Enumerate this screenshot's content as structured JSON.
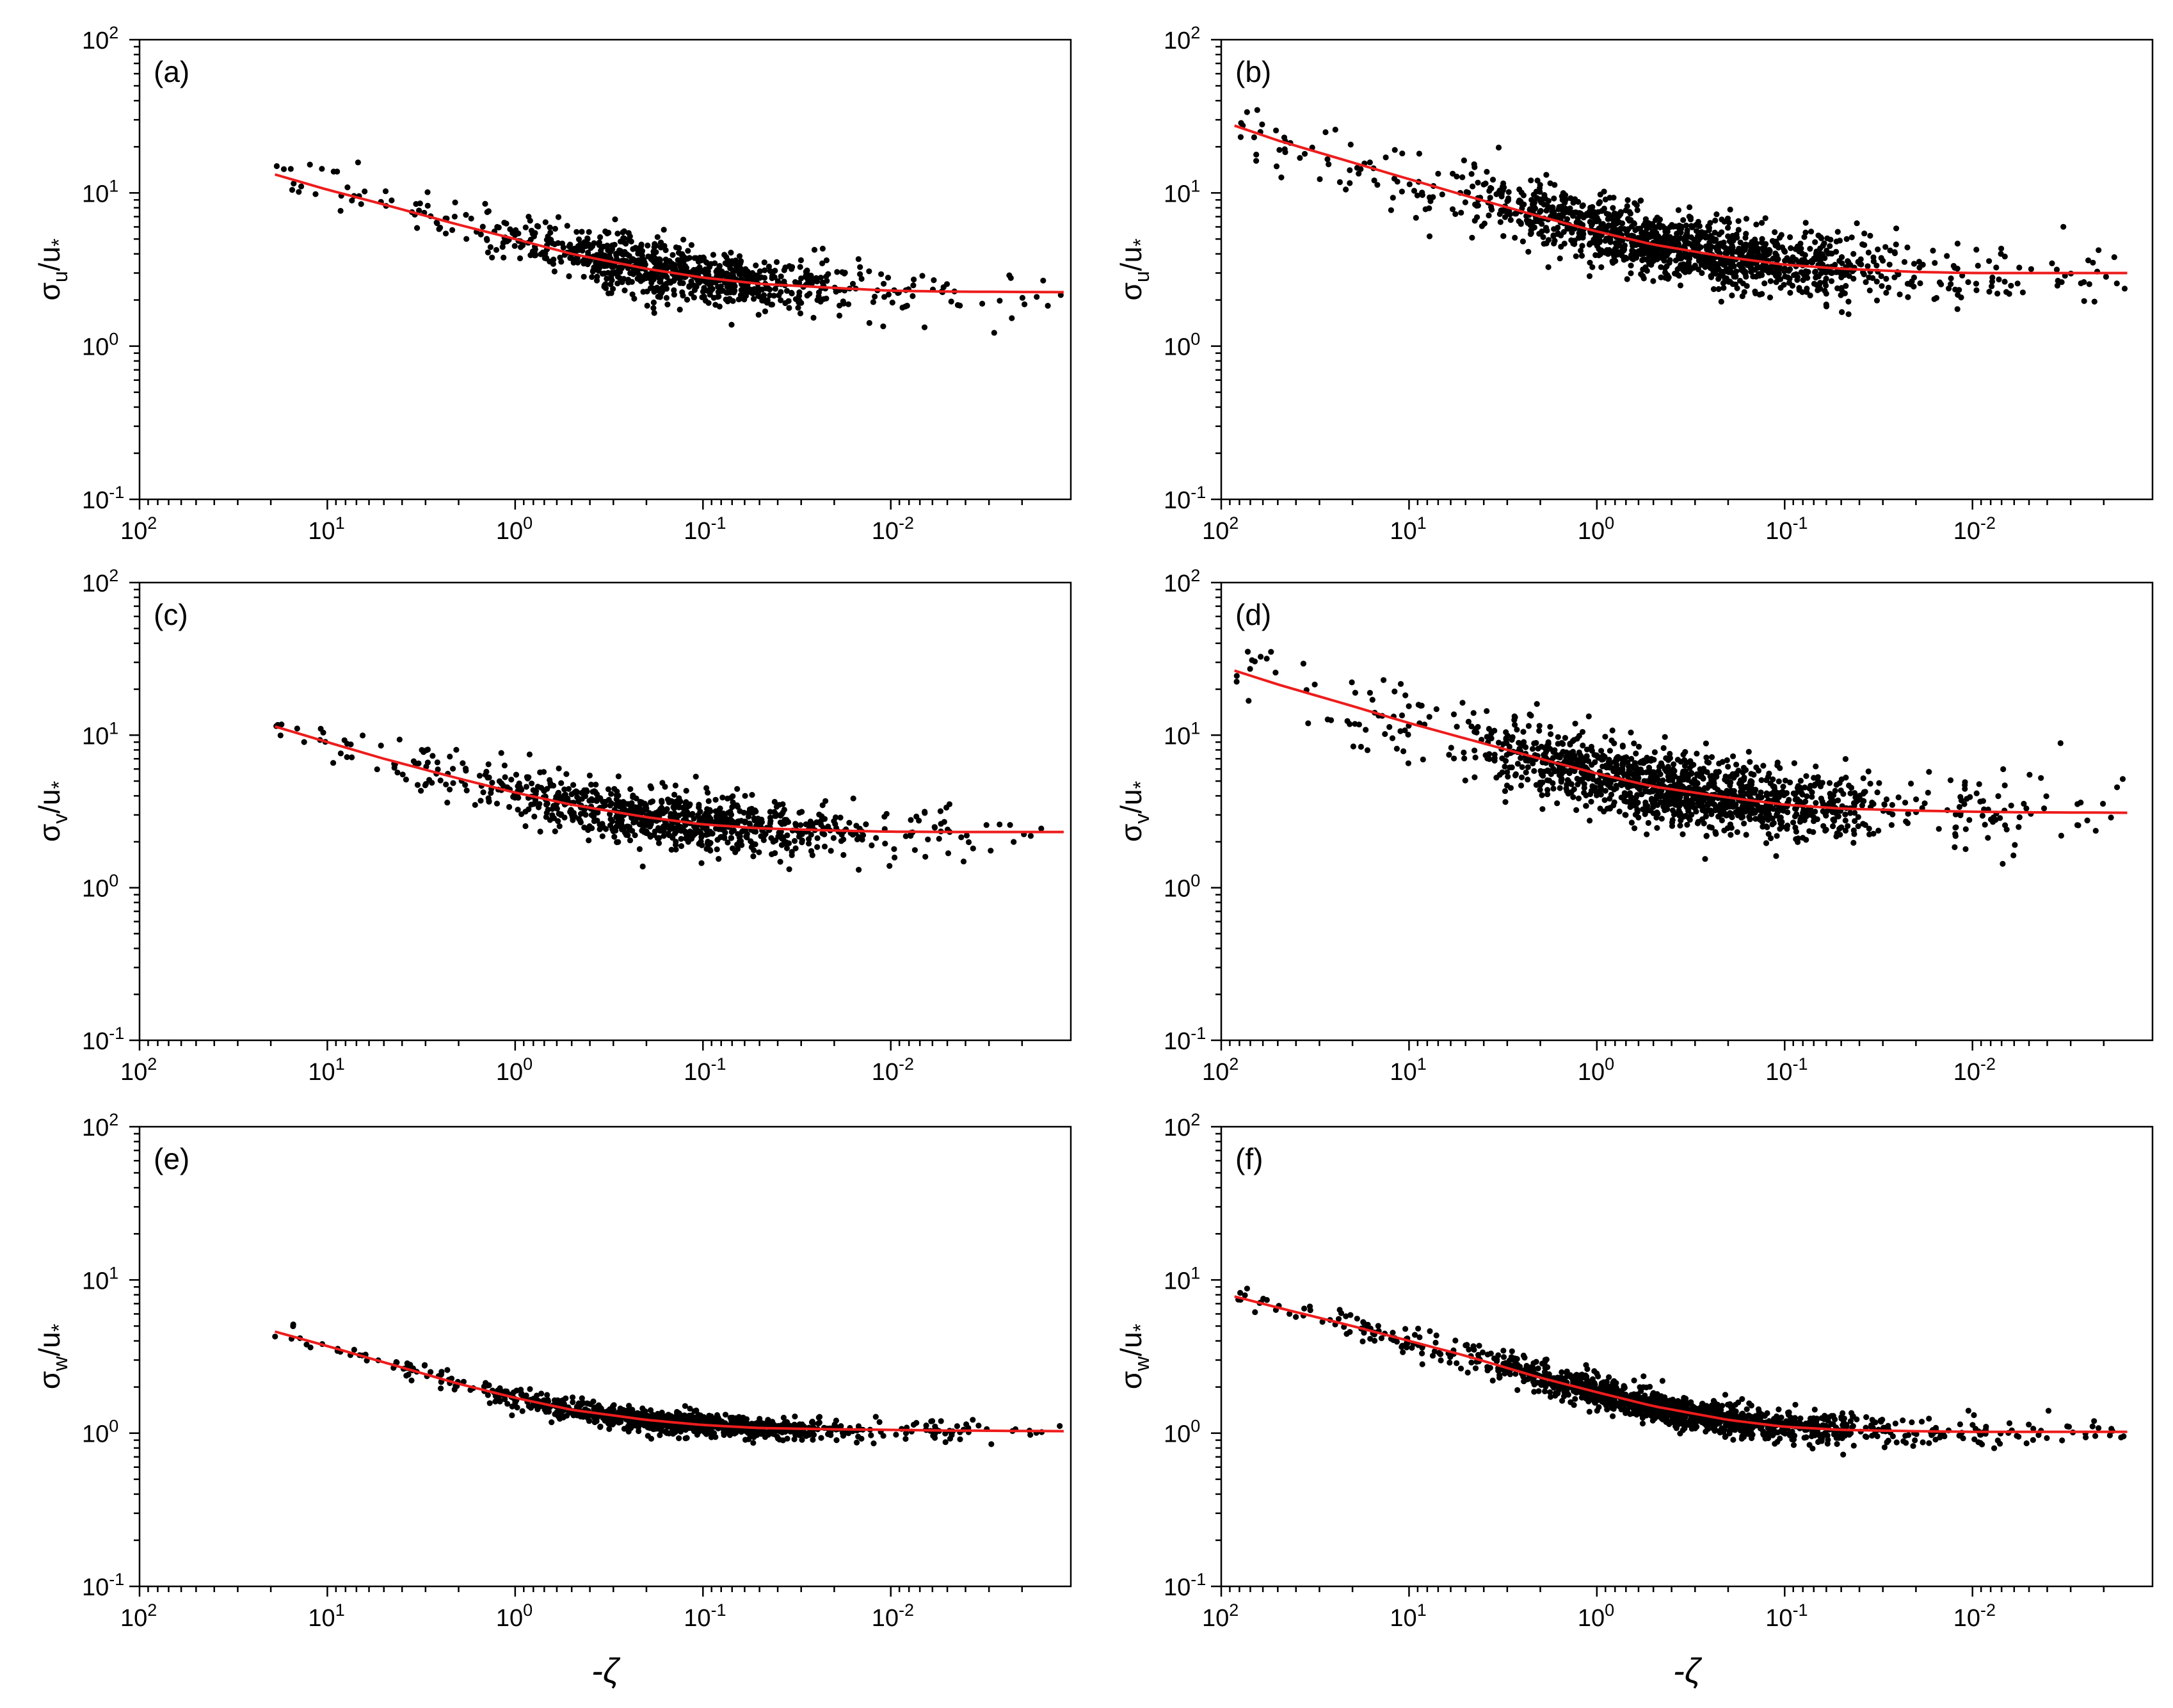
{
  "chart_data": {
    "x_axis_label": "-ζ",
    "x_axis_reversed": true,
    "x_scale": "log",
    "y_scale": "log",
    "panels": [
      {
        "id": "a",
        "label": "(a)",
        "type": "scatter",
        "ylabel": "σu/u*",
        "ylabel_main": "σ",
        "ylabel_sub": "u",
        "xlim": [
          100,
          0.0011
        ],
        "ylim": [
          0.1,
          100
        ],
        "x_ticks": [
          {
            "base": "10",
            "exp": "2"
          },
          {
            "base": "10",
            "exp": "1"
          },
          {
            "base": "10",
            "exp": "0"
          },
          {
            "base": "10",
            "exp": "-1"
          },
          {
            "base": "10",
            "exp": "-2"
          }
        ],
        "y_ticks": [
          {
            "base": "10",
            "exp": "2"
          },
          {
            "base": "10",
            "exp": "1"
          },
          {
            "base": "10",
            "exp": "0"
          },
          {
            "base": "10",
            "exp": "-1"
          }
        ],
        "x_tick_values": [
          100,
          10,
          1,
          0.1,
          0.01
        ],
        "y_tick_values": [
          100,
          10,
          1,
          0.1
        ],
        "show_xlabel": false,
        "scatter": {
          "xmin": 0.0012,
          "xmax": 19,
          "n": 900,
          "spread": 0.09,
          "seed": 11
        },
        "fit_curve": {
          "name": "fit",
          "x": [
            19,
            10,
            5,
            2,
            1,
            0.5,
            0.2,
            0.1,
            0.05,
            0.02,
            0.01,
            0.005,
            0.0012
          ],
          "y": [
            13.2,
            10.5,
            8.4,
            6.2,
            5.0,
            4.0,
            3.2,
            2.8,
            2.55,
            2.4,
            2.3,
            2.27,
            2.25
          ]
        }
      },
      {
        "id": "b",
        "label": "(b)",
        "type": "scatter",
        "ylabel": "σu/u*",
        "ylabel_main": "σ",
        "ylabel_sub": "u",
        "xlim": [
          100,
          0.0011
        ],
        "ylim": [
          0.1,
          100
        ],
        "x_ticks": [
          {
            "base": "10",
            "exp": "2"
          },
          {
            "base": "10",
            "exp": "1"
          },
          {
            "base": "10",
            "exp": "0"
          },
          {
            "base": "10",
            "exp": "-1"
          },
          {
            "base": "10",
            "exp": "-2"
          }
        ],
        "y_ticks": [
          {
            "base": "10",
            "exp": "2"
          },
          {
            "base": "10",
            "exp": "1"
          },
          {
            "base": "10",
            "exp": "0"
          },
          {
            "base": "10",
            "exp": "-1"
          }
        ],
        "x_tick_values": [
          100,
          10,
          1,
          0.1,
          0.01
        ],
        "y_tick_values": [
          100,
          10,
          1,
          0.1
        ],
        "show_xlabel": false,
        "scatter": {
          "xmin": 0.0015,
          "xmax": 85,
          "n": 1400,
          "spread": 0.11,
          "seed": 23
        },
        "fit_curve": {
          "name": "fit",
          "x": [
            85,
            50,
            20,
            10,
            5,
            2,
            1,
            0.5,
            0.2,
            0.1,
            0.05,
            0.02,
            0.01,
            0.005,
            0.0015
          ],
          "y": [
            27.5,
            22,
            15.8,
            12.3,
            9.6,
            7.0,
            5.6,
            4.6,
            3.8,
            3.4,
            3.2,
            3.05,
            3.0,
            3.0,
            3.0
          ]
        }
      },
      {
        "id": "c",
        "label": "(c)",
        "type": "scatter",
        "ylabel": "σv/u*",
        "ylabel_main": "σ",
        "ylabel_sub": "v",
        "xlim": [
          100,
          0.0011
        ],
        "ylim": [
          0.1,
          100
        ],
        "x_ticks": [
          {
            "base": "10",
            "exp": "2"
          },
          {
            "base": "10",
            "exp": "1"
          },
          {
            "base": "10",
            "exp": "0"
          },
          {
            "base": "10",
            "exp": "-1"
          },
          {
            "base": "10",
            "exp": "-2"
          }
        ],
        "y_ticks": [
          {
            "base": "10",
            "exp": "2"
          },
          {
            "base": "10",
            "exp": "1"
          },
          {
            "base": "10",
            "exp": "0"
          },
          {
            "base": "10",
            "exp": "-1"
          }
        ],
        "x_tick_values": [
          100,
          10,
          1,
          0.1,
          0.01
        ],
        "y_tick_values": [
          100,
          10,
          1,
          0.1
        ],
        "show_xlabel": false,
        "scatter": {
          "xmin": 0.0012,
          "xmax": 19,
          "n": 900,
          "spread": 0.09,
          "seed": 37
        },
        "fit_curve": {
          "name": "fit",
          "x": [
            19,
            10,
            5,
            2,
            1,
            0.5,
            0.2,
            0.1,
            0.05,
            0.02,
            0.01,
            0.005,
            0.0012
          ],
          "y": [
            11.4,
            9.0,
            7.0,
            5.2,
            4.2,
            3.5,
            2.9,
            2.6,
            2.45,
            2.37,
            2.33,
            2.32,
            2.32
          ]
        }
      },
      {
        "id": "d",
        "label": "(d)",
        "type": "scatter",
        "ylabel": "σv/u*",
        "ylabel_main": "σ",
        "ylabel_sub": "v",
        "xlim": [
          100,
          0.0011
        ],
        "ylim": [
          0.1,
          100
        ],
        "x_ticks": [
          {
            "base": "10",
            "exp": "2"
          },
          {
            "base": "10",
            "exp": "1"
          },
          {
            "base": "10",
            "exp": "0"
          },
          {
            "base": "10",
            "exp": "-1"
          },
          {
            "base": "10",
            "exp": "-2"
          }
        ],
        "y_ticks": [
          {
            "base": "10",
            "exp": "2"
          },
          {
            "base": "10",
            "exp": "1"
          },
          {
            "base": "10",
            "exp": "0"
          },
          {
            "base": "10",
            "exp": "-1"
          }
        ],
        "x_tick_values": [
          100,
          10,
          1,
          0.1,
          0.01
        ],
        "y_tick_values": [
          100,
          10,
          1,
          0.1
        ],
        "show_xlabel": false,
        "scatter": {
          "xmin": 0.0015,
          "xmax": 85,
          "n": 1400,
          "spread": 0.12,
          "seed": 41
        },
        "fit_curve": {
          "name": "fit",
          "x": [
            85,
            50,
            20,
            10,
            5,
            2,
            1,
            0.5,
            0.2,
            0.1,
            0.05,
            0.02,
            0.01,
            0.005,
            0.0015
          ],
          "y": [
            26.5,
            21.5,
            15.5,
            12.0,
            9.5,
            7.0,
            5.6,
            4.6,
            3.9,
            3.5,
            3.3,
            3.2,
            3.15,
            3.12,
            3.1
          ]
        }
      },
      {
        "id": "e",
        "label": "(e)",
        "type": "scatter",
        "ylabel": "σw/u*",
        "ylabel_main": "σ",
        "ylabel_sub": "w",
        "xlim": [
          100,
          0.0011
        ],
        "ylim": [
          0.1,
          100
        ],
        "x_ticks": [
          {
            "base": "10",
            "exp": "2"
          },
          {
            "base": "10",
            "exp": "1"
          },
          {
            "base": "10",
            "exp": "0"
          },
          {
            "base": "10",
            "exp": "-1"
          },
          {
            "base": "10",
            "exp": "-2"
          }
        ],
        "y_ticks": [
          {
            "base": "10",
            "exp": "2"
          },
          {
            "base": "10",
            "exp": "1"
          },
          {
            "base": "10",
            "exp": "0"
          },
          {
            "base": "10",
            "exp": "-1"
          }
        ],
        "x_tick_values": [
          100,
          10,
          1,
          0.1,
          0.01
        ],
        "y_tick_values": [
          100,
          10,
          1,
          0.1
        ],
        "show_xlabel": true,
        "scatter": {
          "xmin": 0.0012,
          "xmax": 19,
          "n": 1000,
          "spread": 0.035,
          "seed": 53
        },
        "fit_curve": {
          "name": "fit",
          "x": [
            19,
            10,
            5,
            2,
            1,
            0.5,
            0.2,
            0.1,
            0.05,
            0.02,
            0.01,
            0.005,
            0.0012
          ],
          "y": [
            4.6,
            3.7,
            2.9,
            2.1,
            1.7,
            1.42,
            1.22,
            1.13,
            1.08,
            1.06,
            1.05,
            1.04,
            1.03
          ]
        }
      },
      {
        "id": "f",
        "label": "(f)",
        "type": "scatter",
        "ylabel": "σw/u*",
        "ylabel_main": "σ",
        "ylabel_sub": "w",
        "xlim": [
          100,
          0.0011
        ],
        "ylim": [
          0.1,
          100
        ],
        "x_ticks": [
          {
            "base": "10",
            "exp": "2"
          },
          {
            "base": "10",
            "exp": "1"
          },
          {
            "base": "10",
            "exp": "0"
          },
          {
            "base": "10",
            "exp": "-1"
          },
          {
            "base": "10",
            "exp": "-2"
          }
        ],
        "y_ticks": [
          {
            "base": "10",
            "exp": "2"
          },
          {
            "base": "10",
            "exp": "1"
          },
          {
            "base": "10",
            "exp": "0"
          },
          {
            "base": "10",
            "exp": "-1"
          }
        ],
        "x_tick_values": [
          100,
          10,
          1,
          0.1,
          0.01
        ],
        "y_tick_values": [
          100,
          10,
          1,
          0.1
        ],
        "show_xlabel": true,
        "scatter": {
          "xmin": 0.0015,
          "xmax": 85,
          "n": 1400,
          "spread": 0.05,
          "seed": 67
        },
        "fit_curve": {
          "name": "fit",
          "x": [
            85,
            50,
            20,
            10,
            5,
            2,
            1,
            0.5,
            0.2,
            0.1,
            0.05,
            0.02,
            0.01,
            0.005,
            0.0015
          ],
          "y": [
            7.8,
            6.6,
            5.0,
            4.0,
            3.2,
            2.3,
            1.85,
            1.5,
            1.22,
            1.1,
            1.05,
            1.03,
            1.02,
            1.02,
            1.02
          ]
        }
      }
    ]
  }
}
